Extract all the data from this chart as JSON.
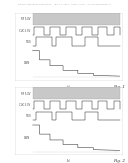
{
  "header_text": "Patent Application Publication    Jan. 17, 2013   Sheet 1 of 8    US 2013/0014648 A1",
  "fig1_label": "Fig. 1",
  "fig2_label": "Fig. 2",
  "background_color": "#ffffff",
  "panel_bg": "#c8c8c8",
  "signal_color": "#222222",
  "label_fontsize": 1.8,
  "header_fontsize": 1.6,
  "fignum_fontsize": 3.0,
  "y_labels_top": [
    "RF 5.0V",
    "CLK 3.3V",
    "TSIG",
    "DWN"
  ],
  "y_labels_bot": [
    "RF 5.0V",
    "CLK 3.3V",
    "TSIG",
    "DWN"
  ],
  "sub_label_top": "(a)",
  "sub_label_bot": "(b)"
}
